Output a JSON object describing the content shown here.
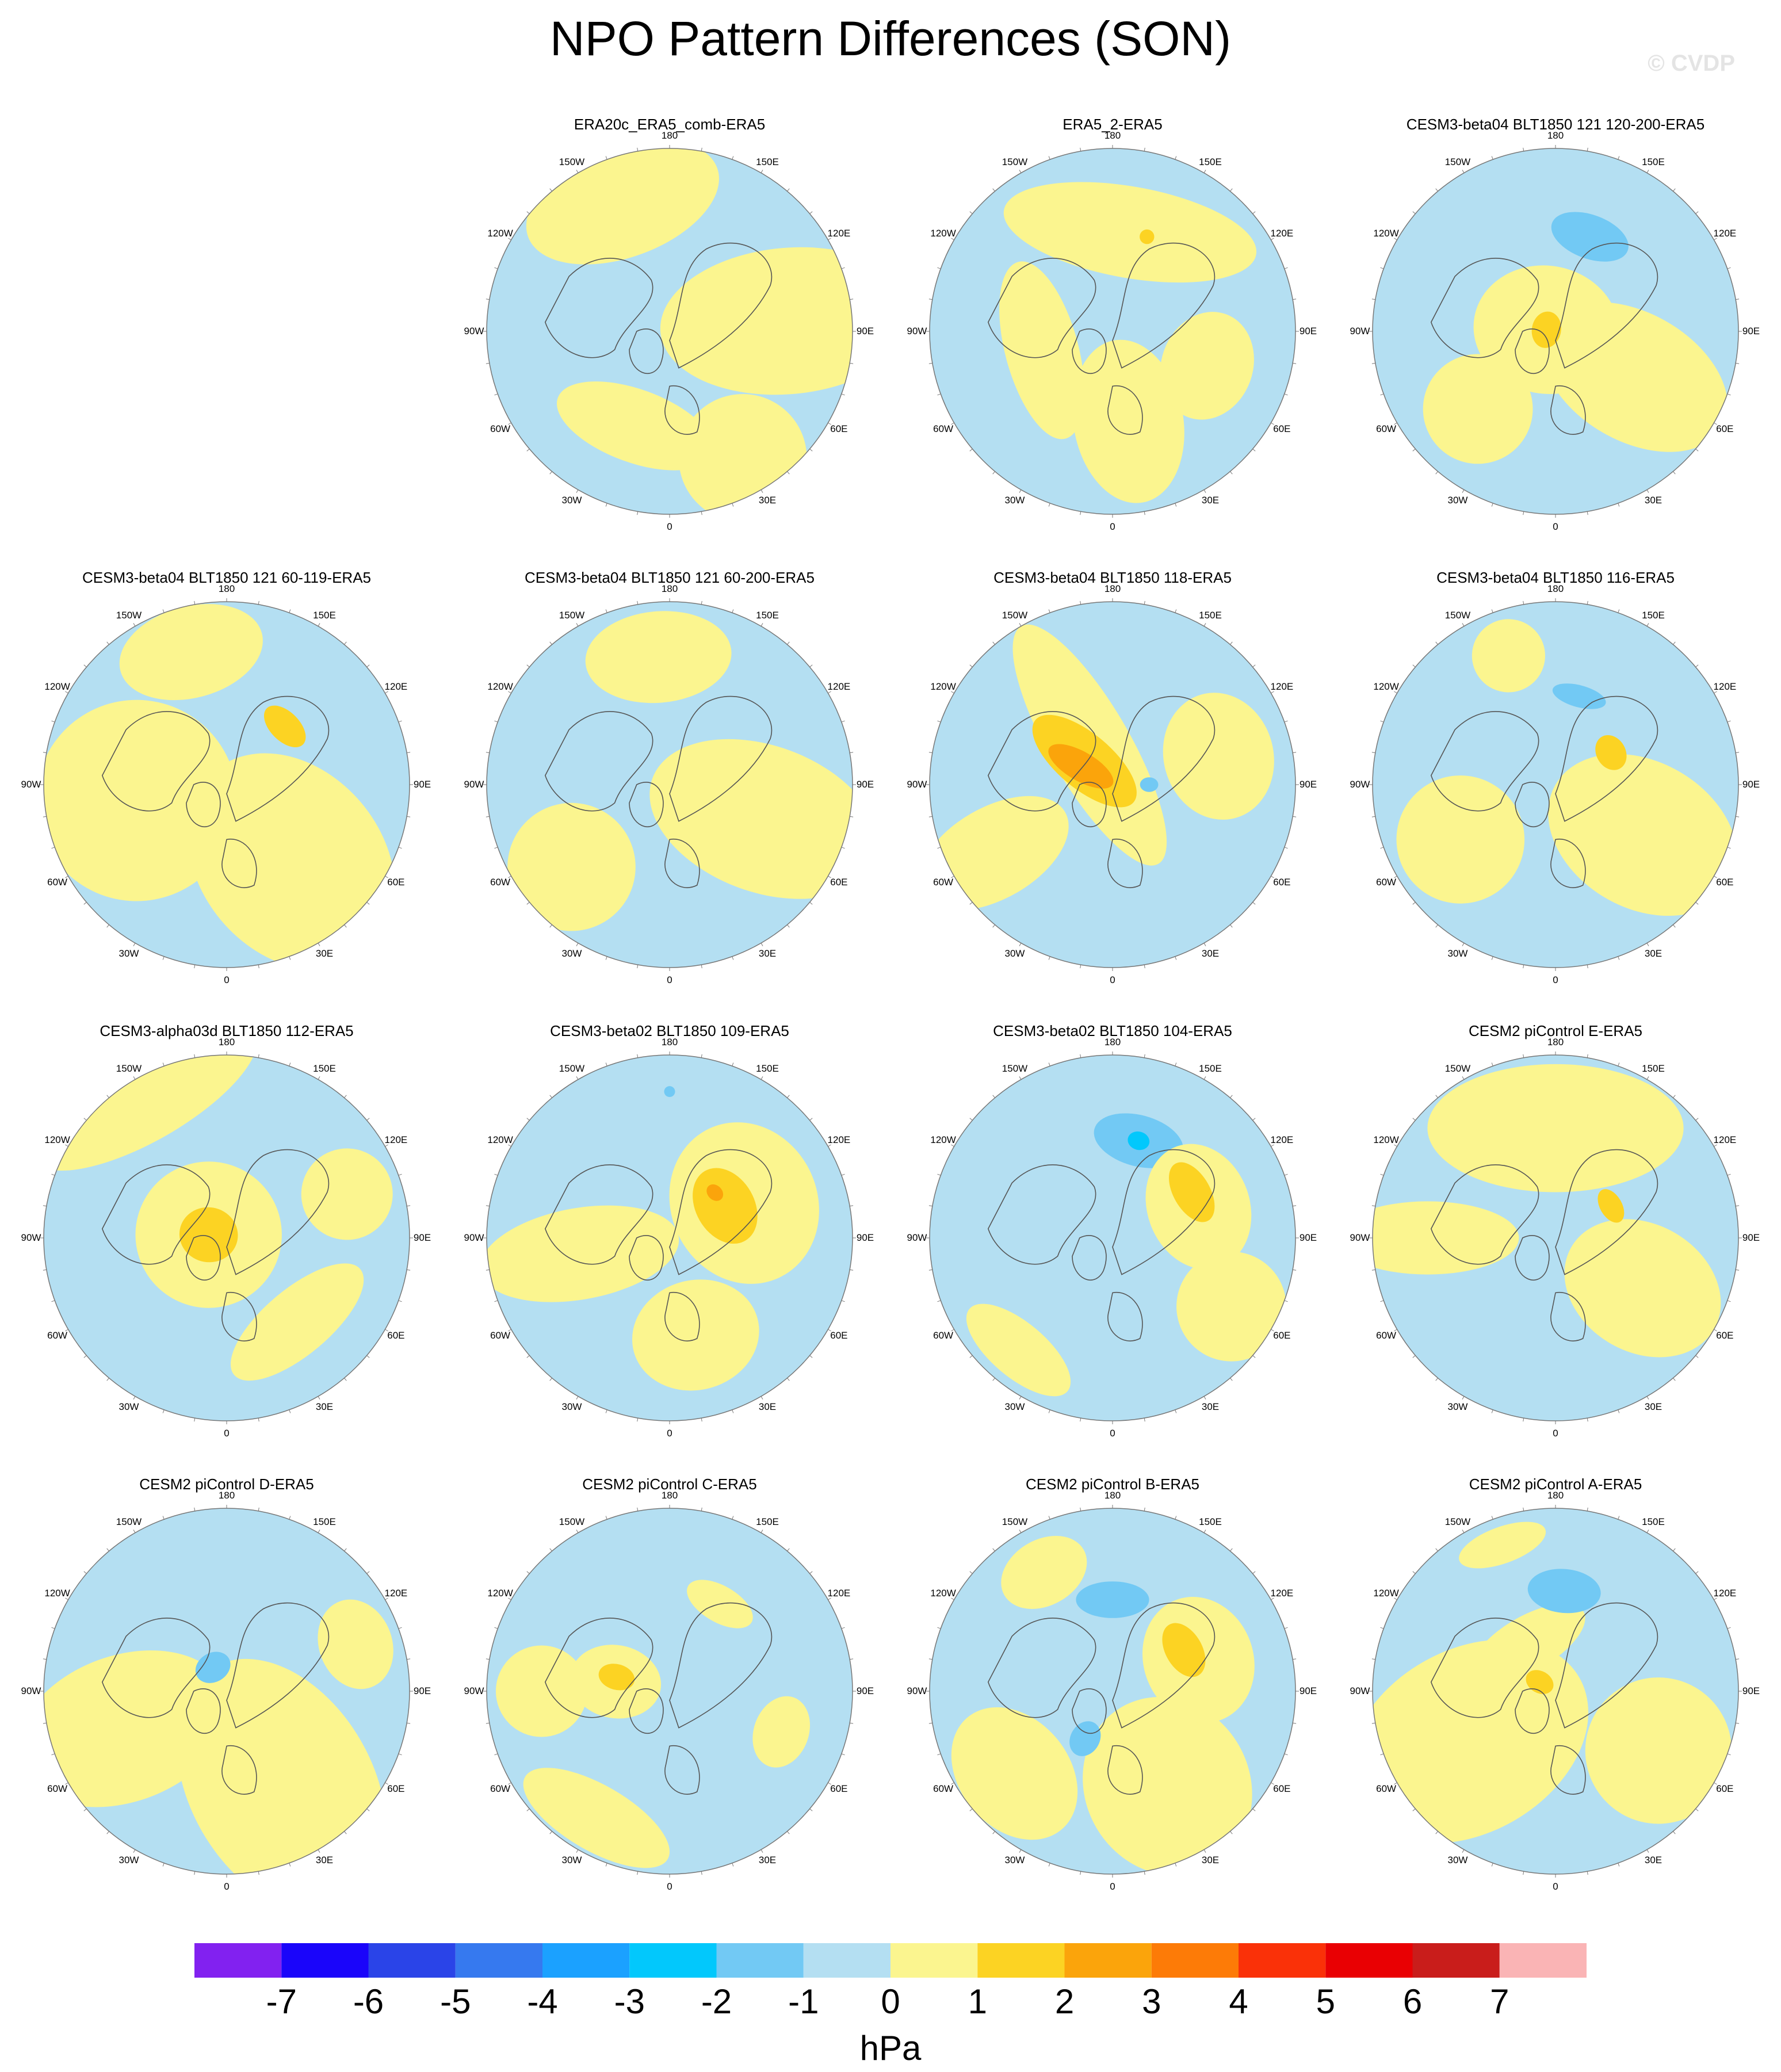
{
  "figure": {
    "title": "NPO Pattern Differences (SON)",
    "watermark": "© CVDP"
  },
  "longitude_labels": [
    "180",
    "150E",
    "120E",
    "90E",
    "60E",
    "30E",
    "0",
    "30W",
    "60W",
    "90W",
    "120W",
    "150W"
  ],
  "panels": [
    {
      "title": "ERA20c_ERA5_comb-ERA5",
      "row": 0,
      "col": 1,
      "features": [
        {
          "type": "region",
          "level": "0 to 1",
          "lon": 160,
          "r": 0.75,
          "rx": 0.55,
          "ry": 0.3
        },
        {
          "type": "region",
          "level": "0 to 1",
          "lon": 265,
          "r": 0.65,
          "rx": 0.4,
          "ry": 0.7
        },
        {
          "type": "region",
          "level": "0 to 1",
          "lon": 20,
          "r": 0.55,
          "rx": 0.45,
          "ry": 0.2
        },
        {
          "type": "region",
          "level": "0 to 1",
          "lon": 330,
          "r": 0.8,
          "rx": 0.35,
          "ry": 0.35
        }
      ]
    },
    {
      "title": "ERA5_2-ERA5",
      "row": 0,
      "col": 2,
      "features": [
        {
          "type": "region",
          "level": "0 to 1",
          "lon": 190,
          "r": 0.55,
          "rx": 0.7,
          "ry": 0.25
        },
        {
          "type": "region",
          "level": "0 to 1",
          "lon": 350,
          "r": 0.5,
          "rx": 0.3,
          "ry": 0.45
        },
        {
          "type": "region",
          "level": "0 to 1",
          "lon": 75,
          "r": 0.4,
          "rx": 0.5,
          "ry": 0.2
        },
        {
          "type": "region",
          "level": "0 to 1",
          "lon": 290,
          "r": 0.55,
          "rx": 0.3,
          "ry": 0.25
        },
        {
          "type": "region",
          "level": "1 to 2",
          "lon": 200,
          "r": 0.55,
          "rx": 0.04,
          "ry": 0.04
        }
      ]
    },
    {
      "title": "CESM3-beta04 BLT1850 121 120-200-ERA5",
      "row": 0,
      "col": 3,
      "features": [
        {
          "type": "region",
          "level": "-2 to -1",
          "lon": 200,
          "r": 0.55,
          "rx": 0.22,
          "ry": 0.12
        },
        {
          "type": "region",
          "level": "0 to 1",
          "lon": 300,
          "r": 0.5,
          "rx": 0.35,
          "ry": 0.55
        },
        {
          "type": "region",
          "level": "0 to 1",
          "lon": 100,
          "r": 0.05,
          "rx": 0.35,
          "ry": 0.4
        },
        {
          "type": "region",
          "level": "1 to 2",
          "lon": 100,
          "r": 0.05,
          "rx": 0.1,
          "ry": 0.08
        },
        {
          "type": "region",
          "level": "0 to 1",
          "lon": 45,
          "r": 0.6,
          "rx": 0.3,
          "ry": 0.3
        }
      ]
    },
    {
      "title": "CESM3-beta04 BLT1850 121 60-119-ERA5",
      "row": 1,
      "col": 0,
      "features": [
        {
          "type": "region",
          "level": "0 to 1",
          "lon": 165,
          "r": 0.75,
          "rx": 0.4,
          "ry": 0.25
        },
        {
          "type": "region",
          "level": "0 to 1",
          "lon": 320,
          "r": 0.55,
          "rx": 0.5,
          "ry": 0.65
        },
        {
          "type": "region",
          "level": "0 to 1",
          "lon": 80,
          "r": 0.5,
          "rx": 0.55,
          "ry": 0.55
        },
        {
          "type": "region",
          "level": "1 to 2",
          "lon": 225,
          "r": 0.45,
          "rx": 0.14,
          "ry": 0.08
        }
      ]
    },
    {
      "title": "CESM3-beta04 BLT1850 121 60-200-ERA5",
      "row": 1,
      "col": 1,
      "features": [
        {
          "type": "region",
          "level": "0 to 1",
          "lon": 175,
          "r": 0.7,
          "rx": 0.4,
          "ry": 0.25
        },
        {
          "type": "region",
          "level": "0 to 1",
          "lon": 290,
          "r": 0.55,
          "rx": 0.4,
          "ry": 0.65
        },
        {
          "type": "region",
          "level": "0 to 1",
          "lon": 50,
          "r": 0.7,
          "rx": 0.35,
          "ry": 0.35
        }
      ]
    },
    {
      "title": "CESM3-beta04 BLT1850 118-ERA5",
      "row": 1,
      "col": 2,
      "features": [
        {
          "type": "region",
          "level": "0 to 1",
          "lon": 150,
          "r": 0.25,
          "rx": 0.22,
          "ry": 0.75
        },
        {
          "type": "region",
          "level": "1 to 2",
          "lon": 130,
          "r": 0.2,
          "rx": 0.15,
          "ry": 0.35
        },
        {
          "type": "region",
          "level": "2 to 3",
          "lon": 120,
          "r": 0.2,
          "rx": 0.08,
          "ry": 0.2
        },
        {
          "type": "region",
          "level": "0 to 1",
          "lon": 255,
          "r": 0.6,
          "rx": 0.35,
          "ry": 0.3
        },
        {
          "type": "region",
          "level": "0 to 1",
          "lon": 60,
          "r": 0.75,
          "rx": 0.25,
          "ry": 0.45
        },
        {
          "type": "region",
          "level": "-2 to -1",
          "lon": 270,
          "r": 0.2,
          "rx": 0.04,
          "ry": 0.05
        }
      ]
    },
    {
      "title": "CESM3-beta04 BLT1850 116-ERA5",
      "row": 1,
      "col": 3,
      "features": [
        {
          "type": "region",
          "level": "0 to 1",
          "lon": 300,
          "r": 0.55,
          "rx": 0.4,
          "ry": 0.55
        },
        {
          "type": "region",
          "level": "0 to 1",
          "lon": 160,
          "r": 0.75,
          "rx": 0.2,
          "ry": 0.2
        },
        {
          "type": "region",
          "level": "0 to 1",
          "lon": 60,
          "r": 0.6,
          "rx": 0.35,
          "ry": 0.35
        },
        {
          "type": "region",
          "level": "-2 to -1",
          "lon": 195,
          "r": 0.5,
          "rx": 0.15,
          "ry": 0.06
        },
        {
          "type": "region",
          "level": "1 to 2",
          "lon": 240,
          "r": 0.35,
          "rx": 0.1,
          "ry": 0.08
        }
      ]
    },
    {
      "title": "CESM3-alpha03d BLT1850 112-ERA5",
      "row": 2,
      "col": 0,
      "features": [
        {
          "type": "region",
          "level": "0 to 1",
          "lon": 150,
          "r": 0.9,
          "rx": 0.7,
          "ry": 0.25
        },
        {
          "type": "region",
          "level": "0 to 1",
          "lon": 100,
          "r": 0.1,
          "rx": 0.4,
          "ry": 0.4
        },
        {
          "type": "region",
          "level": "1 to 2",
          "lon": 100,
          "r": 0.1,
          "rx": 0.15,
          "ry": 0.16
        },
        {
          "type": "region",
          "level": "0 to 1",
          "lon": 320,
          "r": 0.6,
          "rx": 0.45,
          "ry": 0.18
        },
        {
          "type": "region",
          "level": "0 to 1",
          "lon": 250,
          "r": 0.7,
          "rx": 0.25,
          "ry": 0.25
        }
      ]
    },
    {
      "title": "CESM3-beta02 BLT1850 109-ERA5",
      "row": 2,
      "col": 1,
      "features": [
        {
          "type": "region",
          "level": "0 to 1",
          "lon": 245,
          "r": 0.45,
          "rx": 0.45,
          "ry": 0.4
        },
        {
          "type": "region",
          "level": "1 to 2",
          "lon": 240,
          "r": 0.35,
          "rx": 0.22,
          "ry": 0.16
        },
        {
          "type": "region",
          "level": "2 to 3",
          "lon": 225,
          "r": 0.35,
          "rx": 0.05,
          "ry": 0.04
        },
        {
          "type": "region",
          "level": "0 to 1",
          "lon": 345,
          "r": 0.55,
          "rx": 0.35,
          "ry": 0.3
        },
        {
          "type": "region",
          "level": "0 to 1",
          "lon": 80,
          "r": 0.5,
          "rx": 0.25,
          "ry": 0.55
        },
        {
          "type": "region",
          "level": "-2 to -1",
          "lon": 180,
          "r": 0.8,
          "rx": 0.03,
          "ry": 0.03
        }
      ]
    },
    {
      "title": "CESM3-beta02 BLT1850 104-ERA5",
      "row": 2,
      "col": 2,
      "features": [
        {
          "type": "region",
          "level": "-1 to 0",
          "lon": 0,
          "r": 0.0,
          "rx": 0.0,
          "ry": 0.0
        },
        {
          "type": "region",
          "level": "-2 to -1",
          "lon": 195,
          "r": 0.55,
          "rx": 0.25,
          "ry": 0.14
        },
        {
          "type": "region",
          "level": "-3 to -2",
          "lon": 195,
          "r": 0.55,
          "rx": 0.06,
          "ry": 0.05
        },
        {
          "type": "region",
          "level": "0 to 1",
          "lon": 250,
          "r": 0.5,
          "rx": 0.35,
          "ry": 0.28
        },
        {
          "type": "region",
          "level": "1 to 2",
          "lon": 240,
          "r": 0.5,
          "rx": 0.18,
          "ry": 0.1
        },
        {
          "type": "region",
          "level": "0 to 1",
          "lon": 300,
          "r": 0.75,
          "rx": 0.3,
          "ry": 0.3
        },
        {
          "type": "region",
          "level": "0 to 1",
          "lon": 40,
          "r": 0.8,
          "rx": 0.35,
          "ry": 0.15
        }
      ]
    },
    {
      "title": "CESM2 piControl E-ERA5",
      "row": 2,
      "col": 3,
      "features": [
        {
          "type": "region",
          "level": "0 to 1",
          "lon": 180,
          "r": 0.6,
          "rx": 0.7,
          "ry": 0.35
        },
        {
          "type": "region",
          "level": "0 to 1",
          "lon": 300,
          "r": 0.55,
          "rx": 0.35,
          "ry": 0.45
        },
        {
          "type": "region",
          "level": "0 to 1",
          "lon": 90,
          "r": 0.7,
          "rx": 0.2,
          "ry": 0.5
        },
        {
          "type": "region",
          "level": "1 to 2",
          "lon": 240,
          "r": 0.35,
          "rx": 0.1,
          "ry": 0.06
        }
      ]
    },
    {
      "title": "CESM2 piControl D-ERA5",
      "row": 3,
      "col": 0,
      "features": [
        {
          "type": "region",
          "level": "0 to 1",
          "lon": 330,
          "r": 0.6,
          "rx": 0.5,
          "ry": 0.75
        },
        {
          "type": "region",
          "level": "0 to 1",
          "lon": 70,
          "r": 0.6,
          "rx": 0.4,
          "ry": 0.6
        },
        {
          "type": "region",
          "level": "0 to 1",
          "lon": 250,
          "r": 0.75,
          "rx": 0.25,
          "ry": 0.2
        },
        {
          "type": "region",
          "level": "-2 to -1",
          "lon": 150,
          "r": 0.15,
          "rx": 0.1,
          "ry": 0.08
        }
      ]
    },
    {
      "title": "CESM2 piControl C-ERA5",
      "row": 3,
      "col": 1,
      "features": [
        {
          "type": "region",
          "level": "0 to 1",
          "lon": 30,
          "r": 0.8,
          "rx": 0.45,
          "ry": 0.18
        },
        {
          "type": "region",
          "level": "0 to 1",
          "lon": 90,
          "r": 0.7,
          "rx": 0.25,
          "ry": 0.25
        },
        {
          "type": "region",
          "level": "0 to 1",
          "lon": 100,
          "r": 0.3,
          "rx": 0.2,
          "ry": 0.25
        },
        {
          "type": "region",
          "level": "1 to 2",
          "lon": 105,
          "r": 0.3,
          "rx": 0.07,
          "ry": 0.1
        },
        {
          "type": "region",
          "level": "0 to 1",
          "lon": 210,
          "r": 0.55,
          "rx": 0.2,
          "ry": 0.1
        },
        {
          "type": "region",
          "level": "0 to 1",
          "lon": 290,
          "r": 0.65,
          "rx": 0.2,
          "ry": 0.15
        }
      ]
    },
    {
      "title": "CESM2 piControl B-ERA5",
      "row": 3,
      "col": 2,
      "features": [
        {
          "type": "region",
          "level": "0 to 1",
          "lon": 330,
          "r": 0.6,
          "rx": 0.45,
          "ry": 0.5
        },
        {
          "type": "region",
          "level": "0 to 1",
          "lon": 50,
          "r": 0.7,
          "rx": 0.4,
          "ry": 0.3
        },
        {
          "type": "region",
          "level": "0 to 1",
          "lon": 250,
          "r": 0.5,
          "rx": 0.35,
          "ry": 0.3
        },
        {
          "type": "region",
          "level": "1 to 2",
          "lon": 240,
          "r": 0.45,
          "rx": 0.16,
          "ry": 0.1
        },
        {
          "type": "region",
          "level": "-2 to -1",
          "lon": 180,
          "r": 0.5,
          "rx": 0.2,
          "ry": 0.1
        },
        {
          "type": "region",
          "level": "-2 to -1",
          "lon": 30,
          "r": 0.3,
          "rx": 0.08,
          "ry": 0.1
        },
        {
          "type": "region",
          "level": "0 to 1",
          "lon": 150,
          "r": 0.75,
          "rx": 0.25,
          "ry": 0.18
        }
      ]
    },
    {
      "title": "CESM2 piControl A-ERA5",
      "row": 3,
      "col": 3,
      "features": [
        {
          "type": "region",
          "level": "0 to 1",
          "lon": 60,
          "r": 0.55,
          "rx": 0.5,
          "ry": 0.7
        },
        {
          "type": "region",
          "level": "0 to 1",
          "lon": 300,
          "r": 0.65,
          "rx": 0.4,
          "ry": 0.4
        },
        {
          "type": "region",
          "level": "0 to 1",
          "lon": 150,
          "r": 0.3,
          "rx": 0.35,
          "ry": 0.15
        },
        {
          "type": "region",
          "level": "1 to 2",
          "lon": 120,
          "r": 0.1,
          "rx": 0.06,
          "ry": 0.08
        },
        {
          "type": "region",
          "level": "-2 to -1",
          "lon": 185,
          "r": 0.55,
          "rx": 0.2,
          "ry": 0.12
        },
        {
          "type": "region",
          "level": "0 to 1",
          "lon": 160,
          "r": 0.85,
          "rx": 0.25,
          "ry": 0.1
        }
      ]
    }
  ],
  "colorbar": {
    "tick_labels": [
      "-7",
      "-6",
      "-5",
      "-4",
      "-3",
      "-2",
      "-1",
      "0",
      "1",
      "2",
      "3",
      "4",
      "5",
      "6",
      "7"
    ],
    "colors": [
      "#8221f0",
      "#1a05fa",
      "#2a44e8",
      "#3679ef",
      "#1ba1ff",
      "#02c8fc",
      "#72c9f4",
      "#b4dff2",
      "#fbf58f",
      "#fcd323",
      "#fba40b",
      "#fd7b07",
      "#fa3108",
      "#e90003",
      "#c91d1b",
      "#fab4b5"
    ],
    "bounds": [
      -8,
      -7,
      -6,
      -5,
      -4,
      -3,
      -2,
      -1,
      0,
      1,
      2,
      3,
      4,
      5,
      6,
      7,
      8
    ],
    "units": "hPa"
  },
  "colors": {
    "background_level": "-1 to 0",
    "coastline": "#555555"
  }
}
